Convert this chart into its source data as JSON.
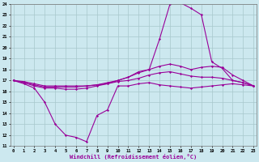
{
  "xlabel": "Windchill (Refroidissement éolien,°C)",
  "x": [
    0,
    1,
    2,
    3,
    4,
    5,
    6,
    7,
    8,
    9,
    10,
    11,
    12,
    13,
    14,
    15,
    16,
    17,
    18,
    19,
    20,
    21,
    22,
    23
  ],
  "line_top": [
    17.0,
    16.7,
    16.3,
    15.0,
    13.0,
    12.0,
    11.8,
    11.4,
    13.8,
    14.3,
    16.5,
    16.5,
    16.7,
    16.8,
    16.6,
    16.5,
    16.4,
    16.3,
    16.4,
    16.5,
    16.6,
    16.7,
    16.6,
    16.5
  ],
  "line_peak": [
    17.0,
    16.8,
    16.5,
    16.3,
    16.3,
    16.2,
    16.2,
    16.3,
    16.5,
    16.7,
    17.0,
    17.3,
    17.8,
    18.0,
    20.8,
    24.0,
    24.1,
    23.6,
    23.0,
    18.7,
    18.1,
    17.0,
    16.8,
    16.5
  ],
  "line_mid1": [
    17.0,
    16.8,
    16.6,
    16.4,
    16.4,
    16.4,
    16.4,
    16.5,
    16.6,
    16.8,
    17.0,
    17.3,
    17.7,
    18.0,
    18.3,
    18.5,
    18.3,
    18.0,
    18.2,
    18.3,
    18.2,
    17.5,
    17.0,
    16.5
  ],
  "line_mid2": [
    17.0,
    16.9,
    16.7,
    16.5,
    16.5,
    16.5,
    16.5,
    16.5,
    16.6,
    16.7,
    16.9,
    17.0,
    17.2,
    17.5,
    17.7,
    17.8,
    17.6,
    17.4,
    17.3,
    17.3,
    17.2,
    17.0,
    16.8,
    16.5
  ],
  "ylim": [
    11,
    24
  ],
  "xlim_min": -0.3,
  "xlim_max": 23.3,
  "line_color": "#990099",
  "bg_color": "#cce8ef",
  "grid_color": "#a8c8cc"
}
